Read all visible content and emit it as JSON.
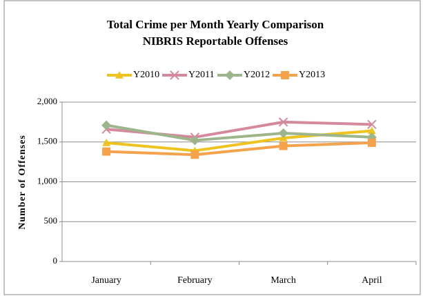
{
  "chart_data": {
    "type": "line",
    "title": "Total Crime per Month Yearly Comparison",
    "subtitle": "NIBRIS Reportable Offenses",
    "ylabel": "Number of Offenses",
    "categories": [
      "January",
      "February",
      "March",
      "April"
    ],
    "series": [
      {
        "name": "Y2010",
        "color": "#eec21f",
        "marker": "triangle",
        "values": [
          1490,
          1390,
          1550,
          1640
        ]
      },
      {
        "name": "Y2011",
        "color": "#d4899c",
        "marker": "x",
        "values": [
          1660,
          1560,
          1750,
          1720
        ]
      },
      {
        "name": "Y2012",
        "color": "#9db58b",
        "marker": "diamond",
        "values": [
          1710,
          1520,
          1610,
          1560
        ]
      },
      {
        "name": "Y2013",
        "color": "#f4a24c",
        "marker": "square",
        "values": [
          1380,
          1340,
          1450,
          1490
        ]
      }
    ],
    "ylim": [
      0,
      2000
    ],
    "yticks": [
      0,
      500,
      {
        "value": 1000,
        "label": "1,000"
      },
      {
        "value": 1500,
        "label": "1,500"
      },
      {
        "value": 2000,
        "label": "2,000"
      }
    ],
    "grid": true,
    "legend": "top"
  }
}
